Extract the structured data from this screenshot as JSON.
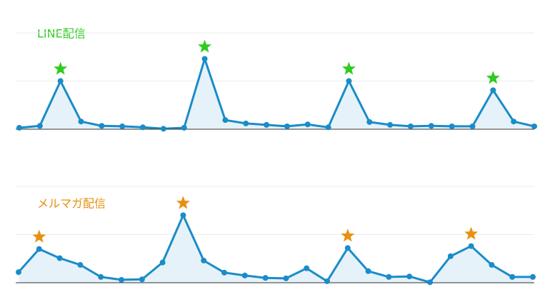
{
  "chart_data": [
    {
      "type": "area",
      "title": "LINE配信",
      "title_color": "#2ecc1f",
      "color": "#1a8cc8",
      "fill": "#e6f2f9",
      "star_color": "#2ecc1f",
      "values": [
        0.03,
        0.07,
        1.0,
        0.16,
        0.07,
        0.06,
        0.04,
        0.01,
        0.03,
        1.46,
        0.19,
        0.12,
        0.09,
        0.06,
        0.1,
        0.04,
        1.0,
        0.15,
        0.09,
        0.06,
        0.07,
        0.06,
        0.06,
        0.81,
        0.16,
        0.06
      ],
      "starred": [
        2,
        9,
        16,
        23
      ],
      "ylim": [
        0,
        2
      ],
      "yticks": [
        0,
        1,
        2
      ],
      "grid": true
    },
    {
      "type": "area",
      "title": "メルマガ配信",
      "title_color": "#e8900f",
      "color": "#1a8cc8",
      "fill": "#e6f2f9",
      "star_color": "#e8900f",
      "values": [
        0.22,
        0.7,
        0.51,
        0.37,
        0.12,
        0.06,
        0.07,
        0.42,
        1.4,
        0.46,
        0.21,
        0.15,
        0.1,
        0.09,
        0.3,
        0.03,
        0.72,
        0.24,
        0.12,
        0.13,
        0.01,
        0.55,
        0.76,
        0.37,
        0.12,
        0.12
      ],
      "starred": [
        1,
        8,
        16,
        22
      ],
      "ylim": [
        0,
        2
      ],
      "yticks": [
        0,
        1,
        2
      ],
      "grid": true
    }
  ]
}
